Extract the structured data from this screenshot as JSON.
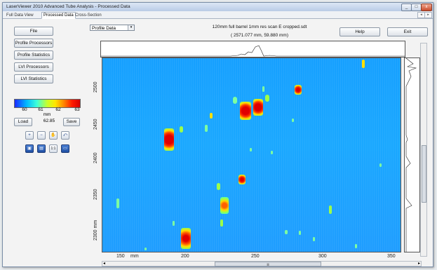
{
  "window": {
    "title": "LaserViewer 2010 Advanced Tube Analysis - Processed Data",
    "controls": {
      "minimize": "_",
      "maximize": "□",
      "close": "x"
    }
  },
  "tabs": [
    "Full Data View",
    "Processed Data",
    "Cross-Section"
  ],
  "tabs_active": "Processed Data",
  "tab_scroll": {
    "left": "◂",
    "right": "▸"
  },
  "sidebar": {
    "file": "File",
    "profile_processors": "Profile Processors",
    "profile_statistics": "Profile Statistics",
    "lvi_processors": "LVI Processors",
    "lvi_statistics": "LVI Statistics"
  },
  "colorbar": {
    "ticks": [
      "60",
      "61",
      "62",
      "63"
    ],
    "unit": "mm",
    "value": "62.85",
    "load": "Load",
    "save": "Save"
  },
  "tools": {
    "zoom_in": "+",
    "zoom_out": "−",
    "pan": "✋",
    "reset": "⤺",
    "save_image": "▣",
    "copy": "▤",
    "one_to_one": "1:1",
    "fit": "▭"
  },
  "dropdown": {
    "value": "Profile Data",
    "arrow": "▾"
  },
  "header": {
    "scan_title": "120mm full barrel 1mm res scan E cropped.sdt",
    "coords": "( 2571.077 mm, 59.880 mm)"
  },
  "buttons": {
    "help": "Help",
    "exit": "Exit"
  },
  "y_ticks": [
    {
      "label": "2500",
      "value": 2500
    },
    {
      "label": "2450",
      "value": 2450
    },
    {
      "label": "2400",
      "value": 2400
    },
    {
      "label": "2350",
      "value": 2350
    },
    {
      "label": "2300 mm",
      "value": 2300
    }
  ],
  "x_ticks": [
    {
      "label": "150",
      "value": 150
    },
    {
      "label": "mm",
      "value": 170
    },
    {
      "label": "200",
      "value": 200
    },
    {
      "label": "250",
      "value": 250
    },
    {
      "label": "300",
      "value": 300
    },
    {
      "label": "350",
      "value": 350
    }
  ],
  "scroll": {
    "left": "◂",
    "right": "▸",
    "thumb": "|||"
  }
}
